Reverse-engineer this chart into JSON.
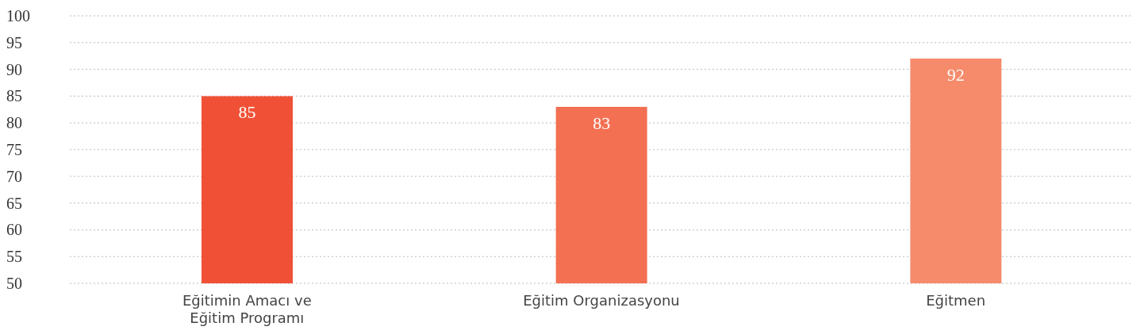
{
  "chart_data": {
    "type": "bar",
    "categories": [
      "Eğitimin Amacı ve Eğitim Programı",
      "Eğitim Organizasyonu",
      "Eğitmen"
    ],
    "values": [
      85,
      83,
      92
    ],
    "colors": [
      "#f05136",
      "#f37052",
      "#f58b6b"
    ],
    "ylim": [
      50,
      100
    ],
    "yticks": [
      50,
      55,
      60,
      65,
      70,
      75,
      80,
      85,
      90,
      95,
      100
    ],
    "grid": "y",
    "data_labels": true
  }
}
